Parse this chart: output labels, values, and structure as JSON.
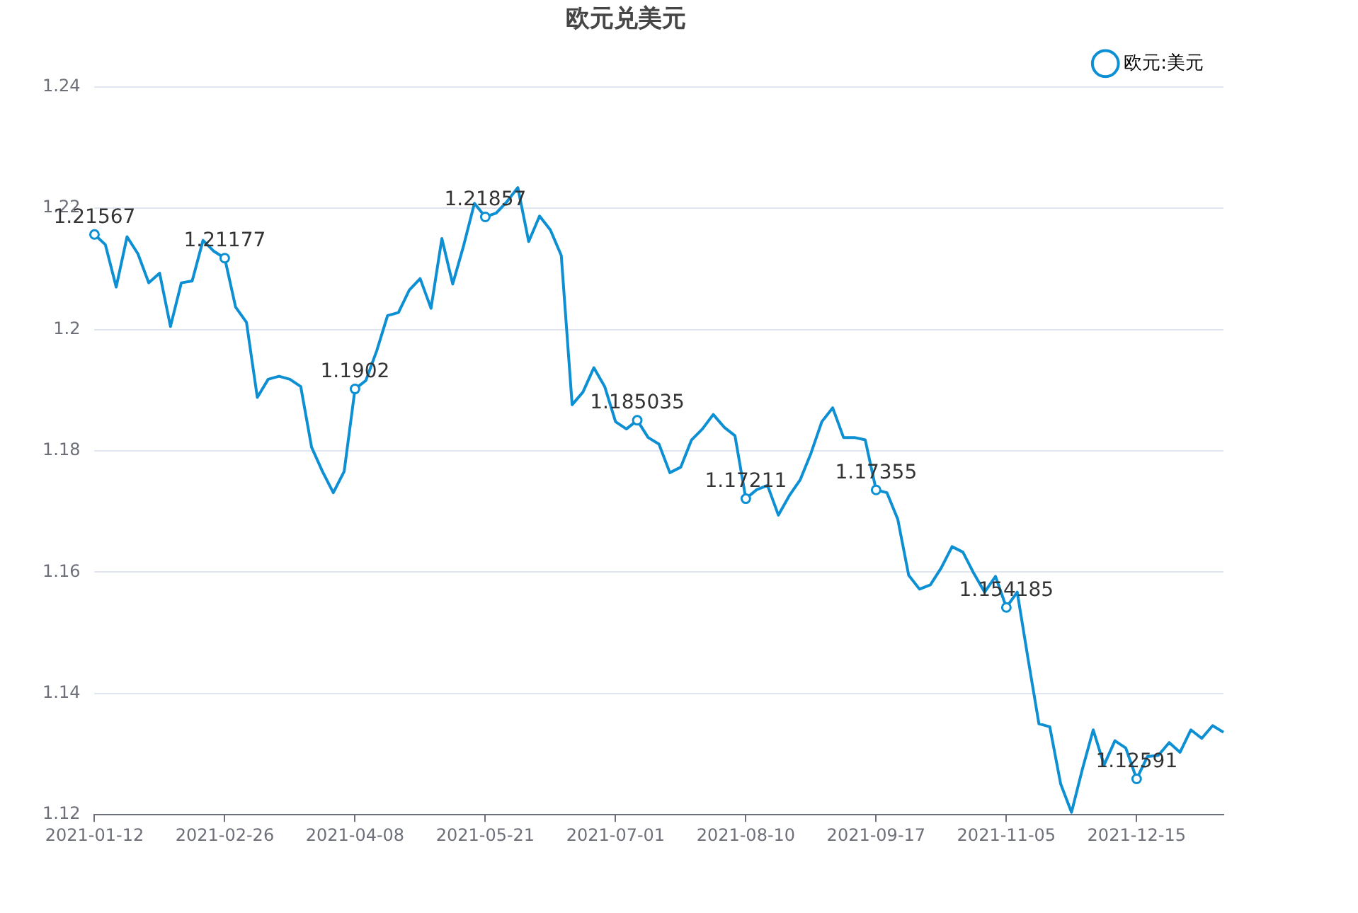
{
  "chart_data": {
    "type": "line",
    "title": "欧元兑美元",
    "categories": [
      "2021-01-12",
      null,
      null,
      null,
      null,
      null,
      null,
      null,
      null,
      null,
      null,
      null,
      "2021-02-26",
      null,
      null,
      null,
      null,
      null,
      null,
      null,
      null,
      null,
      null,
      null,
      "2021-04-08",
      null,
      null,
      null,
      null,
      null,
      null,
      null,
      null,
      null,
      null,
      null,
      "2021-05-21",
      null,
      null,
      null,
      null,
      null,
      null,
      null,
      null,
      null,
      null,
      null,
      "2021-07-01",
      null,
      null,
      null,
      null,
      null,
      null,
      null,
      null,
      null,
      null,
      null,
      "2021-08-10",
      null,
      null,
      null,
      null,
      null,
      null,
      null,
      null,
      null,
      null,
      null,
      "2021-09-17",
      null,
      null,
      null,
      null,
      null,
      null,
      null,
      null,
      null,
      null,
      null,
      "2021-11-05",
      null,
      null,
      null,
      null,
      null,
      null,
      null,
      null,
      null,
      null,
      null,
      "2021-12-15",
      null,
      null,
      null,
      null,
      null,
      null,
      null,
      null
    ],
    "series": [
      {
        "name": "欧元:美元",
        "color": "#0c8fd3",
        "values": [
          1.21567,
          1.214,
          1.207,
          1.2153,
          1.2125,
          1.2077,
          1.2093,
          1.2005,
          1.2077,
          1.208,
          1.2147,
          1.2129,
          1.21177,
          1.2037,
          1.2012,
          1.1888,
          1.1918,
          1.1923,
          1.1918,
          1.1906,
          1.1806,
          1.1766,
          1.1731,
          1.1766,
          1.1902,
          1.1916,
          1.1965,
          1.2023,
          1.2028,
          1.2065,
          1.2084,
          1.2035,
          1.215,
          1.2075,
          1.2138,
          1.2208,
          1.21857,
          1.2192,
          1.2211,
          1.2234,
          1.2145,
          1.2187,
          1.2164,
          1.2122,
          1.1876,
          1.1897,
          1.1937,
          1.1906,
          1.1848,
          1.1836,
          1.185035,
          1.1822,
          1.1811,
          1.1764,
          1.1773,
          1.1818,
          1.1836,
          1.186,
          1.1839,
          1.1825,
          1.17211,
          1.1736,
          1.1743,
          1.1694,
          1.1726,
          1.1752,
          1.1796,
          1.1848,
          1.1871,
          1.1822,
          1.1822,
          1.1818,
          1.17355,
          1.1731,
          1.1687,
          1.1595,
          1.1572,
          1.1579,
          1.1607,
          1.1642,
          1.1633,
          1.1598,
          1.1567,
          1.1593,
          1.154185,
          1.1567,
          1.1457,
          1.135,
          1.1345,
          1.1251,
          1.1204,
          1.1275,
          1.134,
          1.1282,
          1.1322,
          1.131,
          1.12591,
          1.1296,
          1.1298,
          1.1319,
          1.1303,
          1.134,
          1.1326,
          1.1347,
          1.1336
        ],
        "value_labels": [
          "1.21567",
          null,
          null,
          null,
          null,
          null,
          null,
          null,
          null,
          null,
          null,
          null,
          "1.21177",
          null,
          null,
          null,
          null,
          null,
          null,
          null,
          null,
          null,
          null,
          null,
          "1.1902",
          null,
          null,
          null,
          null,
          null,
          null,
          null,
          null,
          null,
          null,
          null,
          "1.21857",
          null,
          null,
          null,
          null,
          null,
          null,
          null,
          null,
          null,
          null,
          null,
          null,
          null,
          "1.185035",
          null,
          null,
          null,
          null,
          null,
          null,
          null,
          null,
          null,
          "1.17211",
          null,
          null,
          null,
          null,
          null,
          null,
          null,
          null,
          null,
          null,
          null,
          "1.17355",
          null,
          null,
          null,
          null,
          null,
          null,
          null,
          null,
          null,
          null,
          null,
          "1.154185",
          null,
          null,
          null,
          null,
          null,
          null,
          null,
          null,
          null,
          null,
          null,
          "1.12591",
          null,
          null,
          null,
          null,
          null,
          null,
          null,
          null
        ]
      }
    ],
    "ylim": [
      1.12,
      1.24
    ],
    "yticks": [
      1.12,
      1.14,
      1.16,
      1.18,
      1.2,
      1.22,
      1.24
    ],
    "grid": "y",
    "legend": "top right"
  }
}
